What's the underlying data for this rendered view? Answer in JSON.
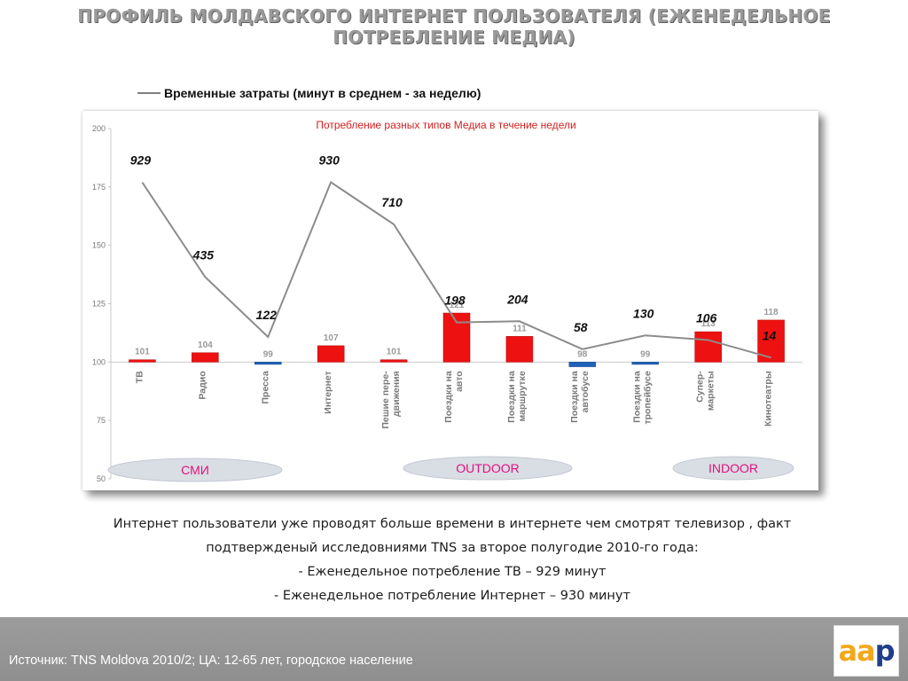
{
  "slide_title": "ПРОФИЛЬ МОЛДАВСКОГО ИНТЕРНЕТ ПОЛЬЗОВАТЕЛЯ (ЕЖЕНЕДЕЛЬНОЕ ПОТРЕБЛЕНИЕ  МЕДИА)",
  "legend_label": "Временные затраты (минут в среднем - за неделю)",
  "chart_data": {
    "type": "bar",
    "title": "Потребление разных типов Медиа в течение недели",
    "categories": [
      "ТВ",
      "Радио",
      "Пресса",
      "Интернет",
      "Пешие пере-движения",
      "Поездки на авто",
      "Поездки на маршрутке",
      "Поездки на автобусе",
      "Поездки    на тропейбусе",
      "Супер-маркеты",
      "Кинотеатры"
    ],
    "ylim": [
      50,
      200
    ],
    "yticks": [
      50,
      75,
      100,
      125,
      150,
      175,
      200
    ],
    "baseline": 100,
    "series": [
      {
        "values": [
          101,
          104,
          99,
          107,
          101,
          121,
          111,
          98,
          99,
          113,
          118
        ]
      }
    ],
    "line_series": [
      {
        "name": "Временные затраты (минут в среднем - за неделю)",
        "values": [
          929,
          435,
          122,
          930,
          710,
          198,
          204,
          58,
          130,
          106,
          14
        ]
      }
    ],
    "groups": [
      "СМИ",
      "OUTDOOR",
      "INDOOR"
    ],
    "colors": {
      "bar_above": "#ee1111",
      "bar_below": "#1f63b8",
      "line": "#8c8c8c",
      "title": "#d42020",
      "group_text": "#e0117f"
    }
  },
  "caption": {
    "line1": "Интернет пользователи уже проводят больше времени в интернете чем смотрят телевизор , факт",
    "line2": "подтвержденый исследовниями TNS за второе полугодие 2010-го года:",
    "line3": "- Еженедельное потребление ТВ – 929 минут",
    "line4": "- Еженедельное потребление Интернет – 930 минут"
  },
  "footer_source": "Источник: TNS Moldova 2010/2; ЦА: 12-65 лет, городское население",
  "logo": {
    "a1": "a",
    "a2": "a",
    "p": "p"
  }
}
